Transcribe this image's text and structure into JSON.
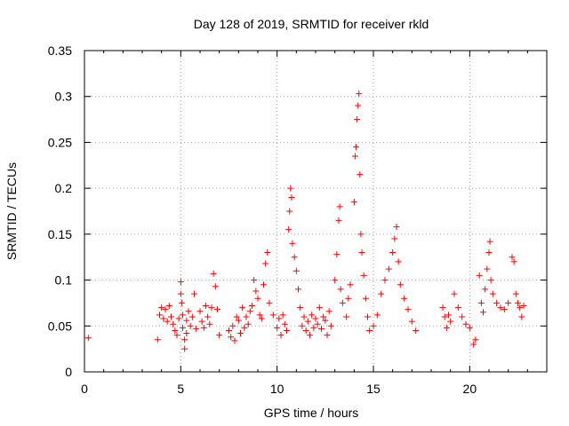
{
  "chart_data": {
    "type": "scatter",
    "title": "Day 128 of 2019, SRMTID for receiver rkld",
    "xlabel": "GPS time / hours",
    "ylabel": "SRMTID / TECUs",
    "xlim": [
      0,
      24
    ],
    "ylim": [
      0,
      0.35
    ],
    "xticks": [
      0,
      5,
      10,
      15,
      20
    ],
    "xtick_labels": [
      "0",
      "5",
      "10",
      "15",
      "20"
    ],
    "yticks": [
      0,
      0.05,
      0.1,
      0.15,
      0.2,
      0.25,
      0.3,
      0.35
    ],
    "ytick_labels": [
      "0",
      "0.05",
      "0.1",
      "0.15",
      "0.2",
      "0.25",
      "0.3",
      "0.35"
    ],
    "grid": true,
    "marker": "plus",
    "color": "#ff0000",
    "series": [
      {
        "name": "SRMTID",
        "points": [
          [
            0.2,
            0.037
          ],
          [
            3.8,
            0.035
          ],
          [
            3.9,
            0.062
          ],
          [
            4.0,
            0.07
          ],
          [
            4.1,
            0.058
          ],
          [
            4.2,
            0.068
          ],
          [
            4.3,
            0.055
          ],
          [
            4.4,
            0.072
          ],
          [
            4.5,
            0.06
          ],
          [
            4.6,
            0.052
          ],
          [
            4.7,
            0.045
          ],
          [
            4.8,
            0.04
          ],
          [
            4.9,
            0.058
          ],
          [
            5.0,
            0.098
          ],
          [
            5.0,
            0.085
          ],
          [
            5.05,
            0.075
          ],
          [
            5.1,
            0.062
          ],
          [
            5.1,
            0.048
          ],
          [
            5.2,
            0.035
          ],
          [
            5.2,
            0.025
          ],
          [
            5.3,
            0.056
          ],
          [
            5.3,
            0.042
          ],
          [
            5.4,
            0.066
          ],
          [
            5.5,
            0.05
          ],
          [
            5.6,
            0.06
          ],
          [
            5.7,
            0.085
          ],
          [
            5.8,
            0.047
          ],
          [
            6.0,
            0.066
          ],
          [
            6.1,
            0.055
          ],
          [
            6.2,
            0.048
          ],
          [
            6.3,
            0.072
          ],
          [
            6.4,
            0.06
          ],
          [
            6.5,
            0.052
          ],
          [
            6.6,
            0.07
          ],
          [
            6.7,
            0.107
          ],
          [
            6.8,
            0.093
          ],
          [
            6.9,
            0.068
          ],
          [
            7.0,
            0.04
          ],
          [
            7.5,
            0.045
          ],
          [
            7.6,
            0.038
          ],
          [
            7.7,
            0.05
          ],
          [
            7.8,
            0.034
          ],
          [
            7.9,
            0.06
          ],
          [
            8.0,
            0.056
          ],
          [
            8.1,
            0.042
          ],
          [
            8.2,
            0.07
          ],
          [
            8.3,
            0.048
          ],
          [
            8.4,
            0.06
          ],
          [
            8.5,
            0.052
          ],
          [
            8.6,
            0.066
          ],
          [
            8.7,
            0.072
          ],
          [
            8.8,
            0.1
          ],
          [
            8.9,
            0.088
          ],
          [
            9.0,
            0.08
          ],
          [
            9.1,
            0.062
          ],
          [
            9.2,
            0.058
          ],
          [
            9.3,
            0.095
          ],
          [
            9.4,
            0.118
          ],
          [
            9.5,
            0.13
          ],
          [
            9.6,
            0.075
          ],
          [
            9.8,
            0.062
          ],
          [
            10.0,
            0.048
          ],
          [
            10.1,
            0.058
          ],
          [
            10.2,
            0.04
          ],
          [
            10.3,
            0.062
          ],
          [
            10.4,
            0.052
          ],
          [
            10.5,
            0.045
          ],
          [
            10.6,
            0.155
          ],
          [
            10.65,
            0.175
          ],
          [
            10.7,
            0.2
          ],
          [
            10.75,
            0.19
          ],
          [
            10.8,
            0.14
          ],
          [
            10.9,
            0.125
          ],
          [
            11.0,
            0.11
          ],
          [
            11.1,
            0.09
          ],
          [
            11.2,
            0.07
          ],
          [
            11.3,
            0.05
          ],
          [
            11.4,
            0.06
          ],
          [
            11.5,
            0.045
          ],
          [
            11.6,
            0.055
          ],
          [
            11.7,
            0.04
          ],
          [
            11.8,
            0.062
          ],
          [
            11.9,
            0.048
          ],
          [
            12.0,
            0.058
          ],
          [
            12.1,
            0.052
          ],
          [
            12.2,
            0.07
          ],
          [
            12.3,
            0.047
          ],
          [
            12.4,
            0.06
          ],
          [
            12.5,
            0.056
          ],
          [
            12.6,
            0.04
          ],
          [
            12.7,
            0.066
          ],
          [
            12.8,
            0.05
          ],
          [
            13.0,
            0.1
          ],
          [
            13.1,
            0.128
          ],
          [
            13.2,
            0.165
          ],
          [
            13.25,
            0.18
          ],
          [
            13.3,
            0.09
          ],
          [
            13.4,
            0.075
          ],
          [
            13.6,
            0.06
          ],
          [
            13.7,
            0.08
          ],
          [
            13.8,
            0.095
          ],
          [
            14.0,
            0.185
          ],
          [
            14.05,
            0.235
          ],
          [
            14.1,
            0.245
          ],
          [
            14.15,
            0.275
          ],
          [
            14.2,
            0.29
          ],
          [
            14.25,
            0.303
          ],
          [
            14.3,
            0.215
          ],
          [
            14.35,
            0.15
          ],
          [
            14.4,
            0.13
          ],
          [
            14.5,
            0.105
          ],
          [
            14.6,
            0.08
          ],
          [
            14.7,
            0.06
          ],
          [
            14.8,
            0.045
          ],
          [
            15.0,
            0.05
          ],
          [
            15.2,
            0.062
          ],
          [
            15.4,
            0.085
          ],
          [
            15.6,
            0.1
          ],
          [
            15.8,
            0.112
          ],
          [
            16.0,
            0.13
          ],
          [
            16.1,
            0.145
          ],
          [
            16.2,
            0.158
          ],
          [
            16.3,
            0.12
          ],
          [
            16.4,
            0.095
          ],
          [
            16.6,
            0.08
          ],
          [
            16.8,
            0.068
          ],
          [
            17.0,
            0.055
          ],
          [
            17.2,
            0.045
          ],
          [
            18.6,
            0.07
          ],
          [
            18.7,
            0.06
          ],
          [
            18.8,
            0.048
          ],
          [
            18.9,
            0.062
          ],
          [
            19.0,
            0.055
          ],
          [
            19.2,
            0.085
          ],
          [
            19.4,
            0.07
          ],
          [
            19.6,
            0.06
          ],
          [
            19.8,
            0.052
          ],
          [
            20.0,
            0.048
          ],
          [
            20.2,
            0.03
          ],
          [
            20.3,
            0.035
          ],
          [
            20.5,
            0.105
          ],
          [
            20.6,
            0.075
          ],
          [
            20.7,
            0.065
          ],
          [
            20.8,
            0.09
          ],
          [
            20.9,
            0.112
          ],
          [
            21.0,
            0.13
          ],
          [
            21.05,
            0.142
          ],
          [
            21.1,
            0.1
          ],
          [
            21.2,
            0.085
          ],
          [
            21.4,
            0.075
          ],
          [
            21.6,
            0.07
          ],
          [
            21.8,
            0.068
          ],
          [
            22.0,
            0.075
          ],
          [
            22.2,
            0.125
          ],
          [
            22.3,
            0.12
          ],
          [
            22.4,
            0.085
          ],
          [
            22.5,
            0.075
          ],
          [
            22.6,
            0.07
          ],
          [
            22.7,
            0.06
          ],
          [
            22.8,
            0.072
          ]
        ]
      }
    ]
  }
}
